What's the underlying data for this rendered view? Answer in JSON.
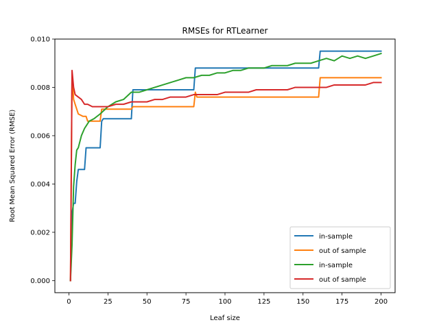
{
  "chart_data": {
    "type": "line",
    "title": "RMSEs for RTLearner",
    "xlabel": "Leaf size",
    "ylabel": "Root Mean Squared Error (RMSE)",
    "xlim": [
      -9,
      209
    ],
    "ylim": [
      -0.0005,
      0.01
    ],
    "xticks": [
      0,
      25,
      50,
      75,
      100,
      125,
      150,
      175,
      200
    ],
    "yticks": [
      0.0,
      0.002,
      0.004,
      0.006,
      0.008,
      0.01
    ],
    "ytick_labels": [
      "0.000",
      "0.002",
      "0.004",
      "0.006",
      "0.008",
      "0.010"
    ],
    "grid": false,
    "legend_position": "lower-right",
    "series": [
      {
        "name": "in-sample",
        "color": "#1f77b4",
        "points": [
          [
            1,
            0.0
          ],
          [
            2,
            0.0028
          ],
          [
            3,
            0.0032
          ],
          [
            4,
            0.0032
          ],
          [
            5,
            0.0041
          ],
          [
            6,
            0.0046
          ],
          [
            10,
            0.0046
          ],
          [
            11,
            0.0055
          ],
          [
            12,
            0.0055
          ],
          [
            20,
            0.0055
          ],
          [
            21,
            0.0066
          ],
          [
            22,
            0.0067
          ],
          [
            40,
            0.0067
          ],
          [
            41,
            0.0079
          ],
          [
            80,
            0.0079
          ],
          [
            81,
            0.0088
          ],
          [
            160,
            0.0088
          ],
          [
            161,
            0.0095
          ],
          [
            200,
            0.0095
          ]
        ]
      },
      {
        "name": "out of sample",
        "color": "#ff7f0e",
        "points": [
          [
            1,
            0.0
          ],
          [
            2,
            0.0086
          ],
          [
            3,
            0.0075
          ],
          [
            4,
            0.0073
          ],
          [
            6,
            0.0069
          ],
          [
            9,
            0.0068
          ],
          [
            11,
            0.0068
          ],
          [
            12,
            0.0066
          ],
          [
            20,
            0.0066
          ],
          [
            21,
            0.0071
          ],
          [
            24,
            0.0071
          ],
          [
            40,
            0.0071
          ],
          [
            41,
            0.0072
          ],
          [
            80,
            0.0072
          ],
          [
            81,
            0.0078
          ],
          [
            82,
            0.0076
          ],
          [
            160,
            0.0076
          ],
          [
            161,
            0.0084
          ],
          [
            200,
            0.0084
          ]
        ]
      },
      {
        "name": "in-sample",
        "color": "#2ca02c",
        "points": [
          [
            1,
            0.0
          ],
          [
            2,
            0.0015
          ],
          [
            3,
            0.0039
          ],
          [
            4,
            0.0048
          ],
          [
            5,
            0.0054
          ],
          [
            6,
            0.0055
          ],
          [
            8,
            0.006
          ],
          [
            10,
            0.0063
          ],
          [
            13,
            0.0066
          ],
          [
            16,
            0.0067
          ],
          [
            20,
            0.0069
          ],
          [
            25,
            0.0072
          ],
          [
            30,
            0.0074
          ],
          [
            35,
            0.0075
          ],
          [
            40,
            0.0078
          ],
          [
            45,
            0.0078
          ],
          [
            50,
            0.0079
          ],
          [
            55,
            0.008
          ],
          [
            60,
            0.0081
          ],
          [
            65,
            0.0082
          ],
          [
            70,
            0.0083
          ],
          [
            75,
            0.0084
          ],
          [
            80,
            0.0084
          ],
          [
            85,
            0.0085
          ],
          [
            90,
            0.0085
          ],
          [
            95,
            0.0086
          ],
          [
            100,
            0.0086
          ],
          [
            105,
            0.0087
          ],
          [
            110,
            0.0087
          ],
          [
            115,
            0.0088
          ],
          [
            120,
            0.0088
          ],
          [
            125,
            0.0088
          ],
          [
            130,
            0.0089
          ],
          [
            135,
            0.0089
          ],
          [
            140,
            0.0089
          ],
          [
            145,
            0.009
          ],
          [
            150,
            0.009
          ],
          [
            155,
            0.009
          ],
          [
            160,
            0.0091
          ],
          [
            165,
            0.0092
          ],
          [
            170,
            0.0091
          ],
          [
            175,
            0.0093
          ],
          [
            180,
            0.0092
          ],
          [
            185,
            0.0093
          ],
          [
            190,
            0.0092
          ],
          [
            195,
            0.0093
          ],
          [
            200,
            0.0094
          ]
        ]
      },
      {
        "name": "out of sample",
        "color": "#d62728",
        "points": [
          [
            1,
            0.0
          ],
          [
            2,
            0.0087
          ],
          [
            3,
            0.008
          ],
          [
            4,
            0.0077
          ],
          [
            6,
            0.0076
          ],
          [
            8,
            0.0075
          ],
          [
            10,
            0.0073
          ],
          [
            12,
            0.0073
          ],
          [
            15,
            0.0072
          ],
          [
            20,
            0.0072
          ],
          [
            25,
            0.0072
          ],
          [
            30,
            0.0073
          ],
          [
            35,
            0.0073
          ],
          [
            40,
            0.0074
          ],
          [
            45,
            0.0074
          ],
          [
            50,
            0.0074
          ],
          [
            55,
            0.0075
          ],
          [
            60,
            0.0075
          ],
          [
            65,
            0.0076
          ],
          [
            70,
            0.0076
          ],
          [
            75,
            0.0076
          ],
          [
            80,
            0.0077
          ],
          [
            85,
            0.0077
          ],
          [
            90,
            0.0077
          ],
          [
            95,
            0.0077
          ],
          [
            100,
            0.0078
          ],
          [
            105,
            0.0078
          ],
          [
            110,
            0.0078
          ],
          [
            115,
            0.0078
          ],
          [
            120,
            0.0079
          ],
          [
            125,
            0.0079
          ],
          [
            130,
            0.0079
          ],
          [
            135,
            0.0079
          ],
          [
            140,
            0.0079
          ],
          [
            145,
            0.008
          ],
          [
            150,
            0.008
          ],
          [
            155,
            0.008
          ],
          [
            160,
            0.008
          ],
          [
            165,
            0.008
          ],
          [
            170,
            0.0081
          ],
          [
            175,
            0.0081
          ],
          [
            180,
            0.0081
          ],
          [
            185,
            0.0081
          ],
          [
            190,
            0.0081
          ],
          [
            195,
            0.0082
          ],
          [
            200,
            0.0082
          ]
        ]
      }
    ]
  }
}
